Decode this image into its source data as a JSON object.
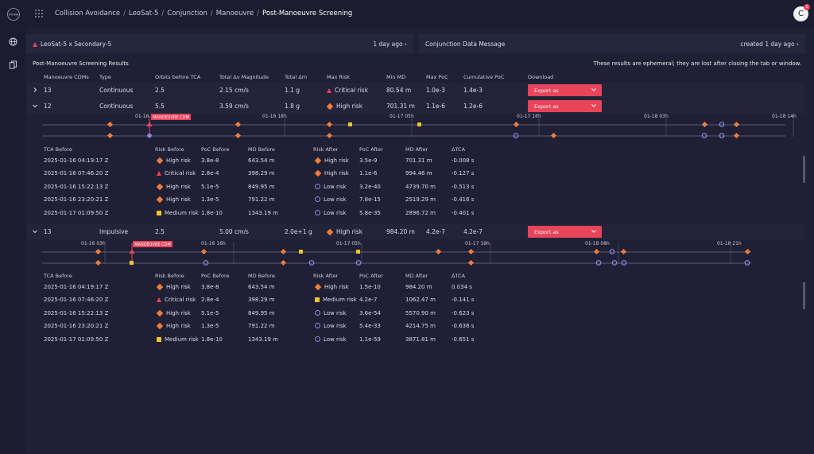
{
  "breadcrumb": [
    "Collision Avoidance",
    "LeoSat-5",
    "Conjunction",
    "Manoeuvre",
    "Post-Manoeuvre Screening"
  ],
  "user": {
    "initial": "C",
    "badge": "1"
  },
  "conjunction_card": {
    "label": "LeoSat-5 x Secondary-5",
    "time": "1 day ago"
  },
  "cdm_card": {
    "label": "Conjunction Data Message",
    "time": "created 1 day ago"
  },
  "section": {
    "title": "Post-Manoeuvre Screening Results",
    "note": "These results are ephemeral; they are lost after closing the tab or window."
  },
  "columns": [
    "Manoeuvre CDMs",
    "Type",
    "Orbits before TCA",
    "Total Δv Magnitude",
    "Total Δm",
    "Max Risk",
    "Min MD",
    "Max PoC",
    "Cumulative PoC",
    "Download"
  ],
  "export_label": "Export as",
  "rows": [
    {
      "cdms": "13",
      "type": "Continuous",
      "orbits": "2.5",
      "dv": "2.15 cm/s",
      "dm": "1.1 g",
      "risk": "Critical risk",
      "risk_shape": "triangle",
      "md": "80.54 m",
      "poc": "1.0e-3",
      "cum": "1.4e-3"
    },
    {
      "cdms": "12",
      "type": "Continuous",
      "orbits": "5.5",
      "dv": "3.59 cm/s",
      "dm": "1.8 g",
      "risk": "High risk",
      "risk_shape": "diamond",
      "md": "701.31 m",
      "poc": "1.1e-6",
      "cum": "1.2e-6"
    },
    {
      "cdms": "13",
      "type": "Impulsive",
      "orbits": "2.5",
      "dv": "5.00 cm/s",
      "dm": "2.0e+1 g",
      "risk": "High risk",
      "risk_shape": "diamond",
      "md": "984.20 m",
      "poc": "4.2e-7",
      "cum": "4.2e-7"
    }
  ],
  "detail_columns": [
    "TCA Before",
    "Risk Before",
    "PoC Before",
    "MD Before",
    "Risk After",
    "PoC After",
    "MD After",
    "ΔTCA"
  ],
  "manoeuvre_tag": "MANOEUVRE CDM",
  "detail1": {
    "ticks": [
      "01-16",
      "01-16 18h",
      "01-17 05h",
      "01-17 16h",
      "01-18 03h",
      "01-18 14h"
    ],
    "rows": [
      {
        "tca": "2025-01-16 04:19:17 Z",
        "rb": "High risk",
        "rbs": "diamond",
        "pb": "3.8e-8",
        "mb": "643.54 m",
        "ra": "High risk",
        "ras": "diamond",
        "pa": "3.5e-9",
        "ma": "701.31 m",
        "dt": "-0.008 s"
      },
      {
        "tca": "2025-01-16 07:46:20 Z",
        "rb": "Critical risk",
        "rbs": "triangle",
        "pb": "2.8e-4",
        "mb": "398.29 m",
        "ra": "High risk",
        "ras": "diamond",
        "pa": "1.1e-6",
        "ma": "994.46 m",
        "dt": "-0.127 s"
      },
      {
        "tca": "2025-01-16 15:22:13 Z",
        "rb": "High risk",
        "rbs": "diamond",
        "pb": "5.1e-5",
        "mb": "849.95 m",
        "ra": "Low risk",
        "ras": "circle",
        "pa": "3.2e-40",
        "ma": "4739.70 m",
        "dt": "-0.513 s"
      },
      {
        "tca": "2025-01-16 23:20:21 Z",
        "rb": "High risk",
        "rbs": "diamond",
        "pb": "1.3e-5",
        "mb": "791.22 m",
        "ra": "Low risk",
        "ras": "circle",
        "pa": "7.8e-15",
        "ma": "2519.29 m",
        "dt": "-0.416 s"
      },
      {
        "tca": "2025-01-17 01:09:50 Z",
        "rb": "Medium risk",
        "rbs": "square",
        "pb": "1.8e-10",
        "mb": "1343.19 m",
        "ra": "Low risk",
        "ras": "circle",
        "pa": "5.8e-35",
        "ma": "2896.72 m",
        "dt": "-0.401 s"
      }
    ]
  },
  "detail2": {
    "ticks": [
      "01-16 03h",
      "01-16 16h",
      "01-17 05h",
      "01-17 19h",
      "01-18 08h",
      "01-18 21h"
    ],
    "rows": [
      {
        "tca": "2025-01-16 04:19:17 Z",
        "rb": "High risk",
        "rbs": "diamond",
        "pb": "3.8e-8",
        "mb": "643.54 m",
        "ra": "High risk",
        "ras": "diamond",
        "pa": "1.5e-10",
        "ma": "984.20 m",
        "dt": "0.034 s"
      },
      {
        "tca": "2025-01-16 07:46:20 Z",
        "rb": "Critical risk",
        "rbs": "triangle",
        "pb": "2.8e-4",
        "mb": "398.29 m",
        "ra": "Medium risk",
        "ras": "square",
        "pa": "4.2e-7",
        "ma": "1062.47 m",
        "dt": "-0.141 s"
      },
      {
        "tca": "2025-01-16 15:22:13 Z",
        "rb": "High risk",
        "rbs": "diamond",
        "pb": "5.1e-5",
        "mb": "849.95 m",
        "ra": "Low risk",
        "ras": "circle",
        "pa": "3.6e-54",
        "ma": "5570.90 m",
        "dt": "-0.623 s"
      },
      {
        "tca": "2025-01-16 23:20:21 Z",
        "rb": "High risk",
        "rbs": "diamond",
        "pb": "1.3e-5",
        "mb": "791.22 m",
        "ra": "Low risk",
        "ras": "circle",
        "pa": "5.4e-33",
        "ma": "4214.75 m",
        "dt": "-0.636 s"
      },
      {
        "tca": "2025-01-17 01:09:50 Z",
        "rb": "Medium risk",
        "rbs": "square",
        "pb": "1.8e-10",
        "mb": "1343.19 m",
        "ra": "Low risk",
        "ras": "circle",
        "pa": "1.1e-59",
        "ma": "3871.81 m",
        "dt": "-0.651 s"
      }
    ]
  },
  "colors": {
    "accent": "#e8445a",
    "high": "#f07d3c",
    "medium": "#f2c230",
    "low": "#8b86e0"
  },
  "icons": {
    "logo": "vyoma-logo",
    "apps": "grid-icon",
    "nav1": "globe-icon",
    "nav2": "documents-icon"
  }
}
